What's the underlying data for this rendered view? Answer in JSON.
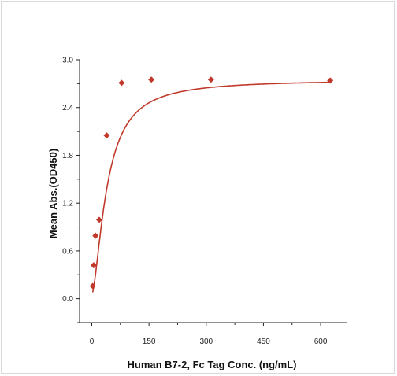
{
  "chart_data": {
    "type": "scatter",
    "title": "",
    "xlabel": "Human B7-2, Fc Tag Conc. (ng/mL)",
    "ylabel": "Mean Abs.(OD450)",
    "xlim": [
      -32,
      668
    ],
    "ylim": [
      -0.3,
      3.0
    ],
    "x_ticks": [
      0,
      150,
      300,
      450,
      600
    ],
    "x_tick_labels": [
      "0",
      "150",
      "300",
      "450",
      "600"
    ],
    "y_ticks": [
      0.0,
      0.6,
      1.2,
      1.8,
      2.4,
      3.0
    ],
    "y_tick_labels": [
      "0.0",
      "0.6",
      "1.2",
      "1.8",
      "2.4",
      "3.0"
    ],
    "grid": false,
    "legend": "none",
    "series": [
      {
        "marker": "diamond",
        "color": "#c0392b",
        "x": [
          2.44,
          4.88,
          9.77,
          19.53,
          39.06,
          78.13,
          156.25,
          312.5,
          625
        ],
        "y": [
          0.16,
          0.42,
          0.79,
          0.99,
          2.05,
          2.71,
          2.75,
          2.75,
          2.74
        ]
      }
    ],
    "fit_curve": {
      "type": "4PL",
      "color": "#c0392b",
      "bottom": 0.05,
      "top": 2.75,
      "ec50": 40,
      "hill": 1.6
    }
  }
}
